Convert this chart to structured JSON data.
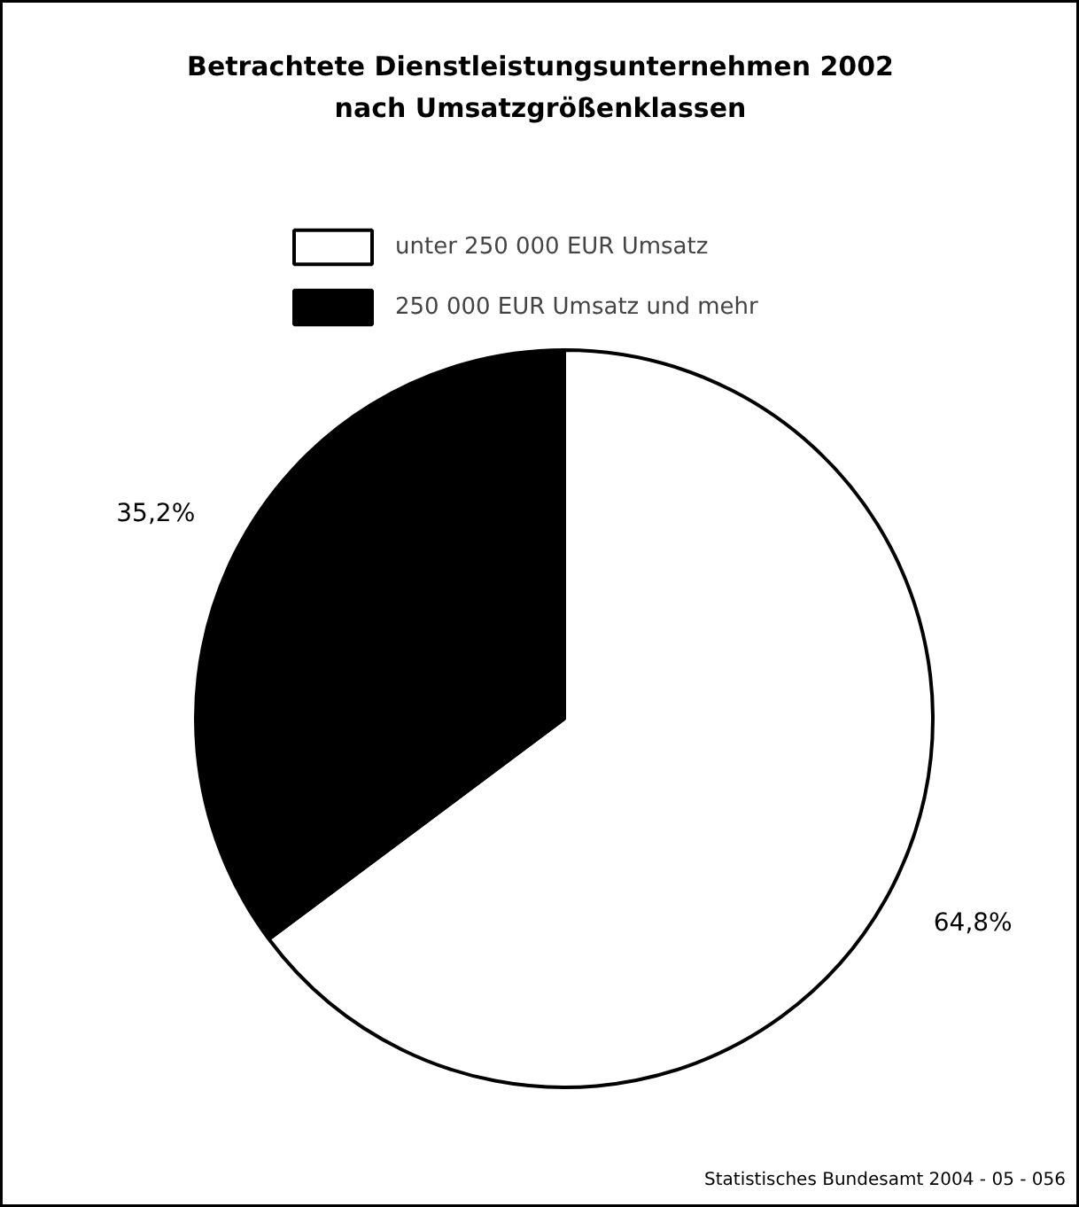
{
  "chart_data": {
    "type": "pie",
    "title": "Betrachtete Dienstleistungsunternehmen 2002\nnach Umsatzgrößenklassen",
    "categories": [
      "unter 250 000 EUR Umsatz",
      "250 000 EUR Umsatz und mehr"
    ],
    "values": [
      64.8,
      35.2
    ],
    "colors": [
      "#ffffff",
      "#000000"
    ],
    "value_labels": [
      "64,8%",
      "35,2%"
    ],
    "legend": "top",
    "annotations": [
      "Statistisches Bundesamt 2004 - 05 - 056"
    ]
  }
}
